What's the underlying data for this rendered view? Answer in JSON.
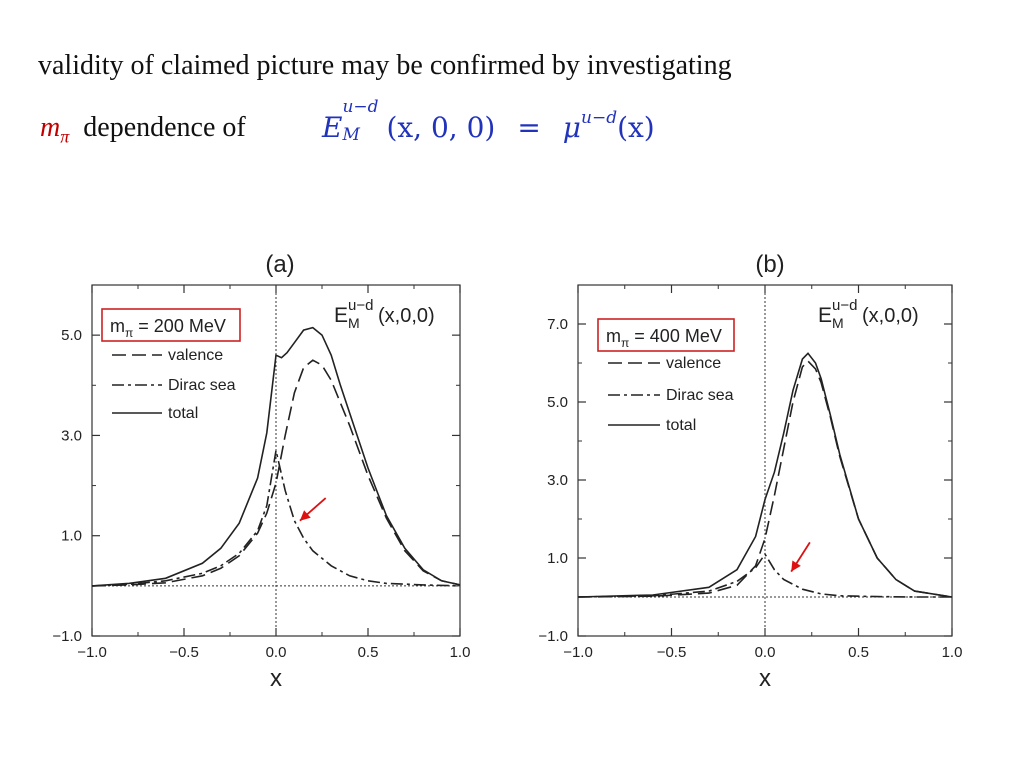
{
  "text": {
    "line1": "validity of claimed picture may be confirmed by investigating",
    "mpi_base": "m",
    "mpi_sub": "π",
    "dependence": "dependence of",
    "formula_E": "E",
    "formula_sup": "u−d",
    "formula_sub": "M",
    "formula_args": "(x, 0, 0)",
    "formula_eq": "=",
    "formula_mu": "μ",
    "formula_mu_sup": "u−d",
    "formula_mu_args": "(x)"
  },
  "colors": {
    "accent": "#c00000",
    "formula": "#2233bb"
  },
  "chart_data": [
    {
      "type": "line",
      "panel_label": "(a)",
      "title_base": "E",
      "title_sub": "M",
      "title_sup": "u−d",
      "title_args": "(x,0,0)",
      "mpi_label_base": "m",
      "mpi_label_sub": "π",
      "mpi_label_value": " = 200 MeV",
      "xlabel": "x",
      "xlim": [
        -1.0,
        1.0
      ],
      "ylim": [
        -1.0,
        6.0
      ],
      "xticks": [
        "−1.0",
        "−0.5",
        "0.0",
        "0.5",
        "1.0"
      ],
      "xtick_values": [
        -1.0,
        -0.5,
        0.0,
        0.5,
        1.0
      ],
      "yticks": [
        "−1.0",
        "1.0",
        "3.0",
        "5.0"
      ],
      "ytick_values": [
        -1.0,
        1.0,
        3.0,
        5.0
      ],
      "legend": {
        "placement": "top-left"
      },
      "arrow": {
        "from": [
          0.27,
          1.75
        ],
        "to": [
          0.13,
          1.3
        ]
      },
      "series": [
        {
          "name": "valence",
          "style": "dashed",
          "x": [
            -1.0,
            -0.8,
            -0.6,
            -0.4,
            -0.3,
            -0.2,
            -0.1,
            -0.05,
            0.0,
            0.05,
            0.1,
            0.15,
            0.2,
            0.25,
            0.3,
            0.4,
            0.5,
            0.6,
            0.7,
            0.8,
            0.9,
            1.0
          ],
          "y": [
            0.0,
            0.02,
            0.06,
            0.2,
            0.35,
            0.6,
            1.05,
            1.45,
            2.05,
            3.0,
            3.85,
            4.35,
            4.5,
            4.4,
            4.1,
            3.2,
            2.2,
            1.35,
            0.7,
            0.3,
            0.1,
            0.02
          ]
        },
        {
          "name": "Dirac sea",
          "style": "dashdot",
          "x": [
            -1.0,
            -0.8,
            -0.6,
            -0.4,
            -0.3,
            -0.2,
            -0.1,
            -0.05,
            0.0,
            0.05,
            0.1,
            0.15,
            0.2,
            0.3,
            0.4,
            0.5,
            0.6,
            0.8,
            1.0
          ],
          "y": [
            0.0,
            0.03,
            0.1,
            0.25,
            0.4,
            0.65,
            1.1,
            1.6,
            2.7,
            1.9,
            1.3,
            0.95,
            0.7,
            0.4,
            0.2,
            0.1,
            0.05,
            0.02,
            0.0
          ]
        },
        {
          "name": "total",
          "style": "solid",
          "x": [
            -1.0,
            -0.8,
            -0.6,
            -0.4,
            -0.3,
            -0.2,
            -0.1,
            -0.05,
            0.0,
            0.03,
            0.06,
            0.1,
            0.15,
            0.2,
            0.25,
            0.3,
            0.35,
            0.4,
            0.5,
            0.6,
            0.7,
            0.8,
            0.9,
            1.0
          ],
          "y": [
            0.0,
            0.05,
            0.15,
            0.45,
            0.75,
            1.25,
            2.15,
            3.05,
            4.6,
            4.55,
            4.65,
            4.85,
            5.1,
            5.15,
            5.0,
            4.6,
            4.0,
            3.45,
            2.35,
            1.4,
            0.75,
            0.32,
            0.1,
            0.02
          ]
        }
      ]
    },
    {
      "type": "line",
      "panel_label": "(b)",
      "title_base": "E",
      "title_sub": "M",
      "title_sup": "u−d",
      "title_args": "(x,0,0)",
      "mpi_label_base": "m",
      "mpi_label_sub": "π",
      "mpi_label_value": " = 400 MeV",
      "xlabel": "x",
      "xlim": [
        -1.0,
        1.0
      ],
      "ylim": [
        -1.0,
        8.0
      ],
      "xticks": [
        "−1.0",
        "−0.5",
        "0.0",
        "0.5",
        "1.0"
      ],
      "xtick_values": [
        -1.0,
        -0.5,
        0.0,
        0.5,
        1.0
      ],
      "yticks": [
        "−1.0",
        "1.0",
        "3.0",
        "5.0",
        "7.0"
      ],
      "ytick_values": [
        -1.0,
        1.0,
        3.0,
        5.0,
        7.0
      ],
      "legend": {
        "placement": "top-left"
      },
      "arrow": {
        "from": [
          0.24,
          1.4
        ],
        "to": [
          0.14,
          0.65
        ]
      },
      "series": [
        {
          "name": "valence",
          "style": "dashed",
          "x": [
            -1.0,
            -0.6,
            -0.3,
            -0.15,
            -0.05,
            0.0,
            0.05,
            0.1,
            0.15,
            0.2,
            0.23,
            0.27,
            0.3,
            0.35,
            0.4,
            0.5,
            0.6,
            0.7,
            0.8,
            1.0
          ],
          "y": [
            0.0,
            0.02,
            0.1,
            0.3,
            0.8,
            1.5,
            2.6,
            3.8,
            5.0,
            5.9,
            6.05,
            5.85,
            5.5,
            4.6,
            3.6,
            2.0,
            1.0,
            0.45,
            0.15,
            0.0
          ]
        },
        {
          "name": "Dirac sea",
          "style": "dashdot",
          "x": [
            -1.0,
            -0.6,
            -0.3,
            -0.15,
            -0.05,
            0.0,
            0.05,
            0.1,
            0.2,
            0.3,
            0.4,
            0.6,
            0.8,
            1.0
          ],
          "y": [
            0.0,
            0.03,
            0.15,
            0.4,
            0.75,
            1.1,
            0.7,
            0.45,
            0.2,
            0.08,
            0.03,
            0.01,
            0.0,
            0.0
          ]
        },
        {
          "name": "total",
          "style": "solid",
          "x": [
            -1.0,
            -0.6,
            -0.3,
            -0.15,
            -0.05,
            0.0,
            0.05,
            0.1,
            0.15,
            0.2,
            0.23,
            0.27,
            0.3,
            0.35,
            0.4,
            0.5,
            0.6,
            0.7,
            0.8,
            1.0
          ],
          "y": [
            0.0,
            0.05,
            0.25,
            0.7,
            1.55,
            2.5,
            3.2,
            4.2,
            5.3,
            6.1,
            6.25,
            6.0,
            5.6,
            4.65,
            3.65,
            2.0,
            1.0,
            0.45,
            0.15,
            0.0
          ]
        }
      ]
    }
  ]
}
